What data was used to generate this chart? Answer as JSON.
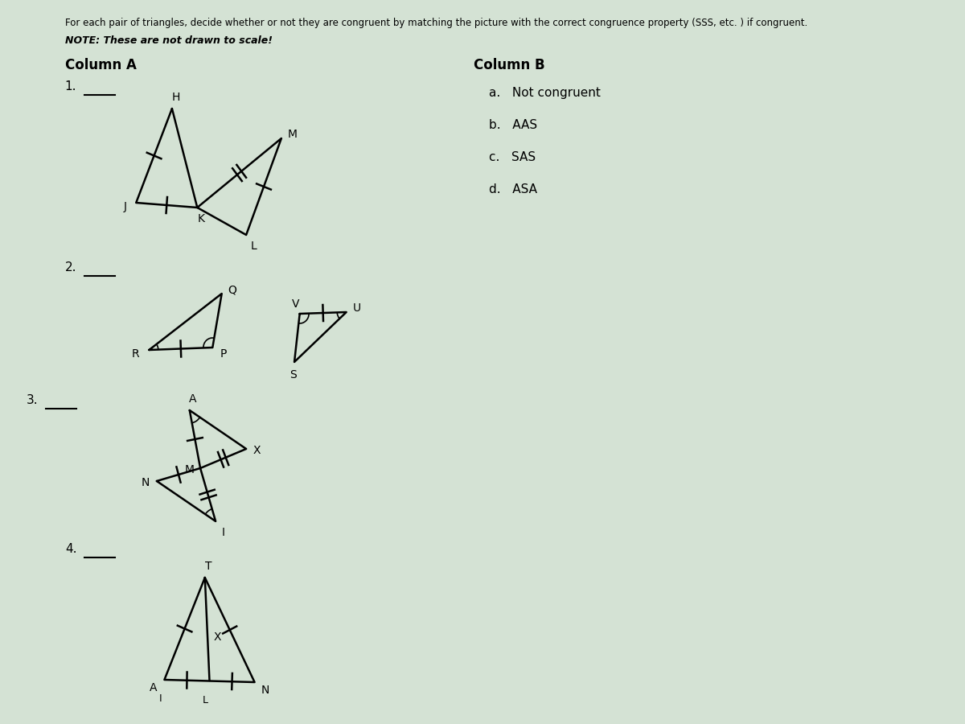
{
  "bg_color": "#d4e2d4",
  "title1": "For each pair of triangles, decide whether or not they are congruent by matching the picture with the correct congruence property (SSS, etc. ) if congruent.",
  "title2": "NOTE: These are not drawn to scale!",
  "col_a": "Column A",
  "col_b": "Column B",
  "answers": [
    "a.   Not congruent",
    "b.   AAS",
    "c.   SAS",
    "d.   ASA"
  ],
  "prob_nums": [
    "1.",
    "2.",
    "3.",
    "4."
  ]
}
